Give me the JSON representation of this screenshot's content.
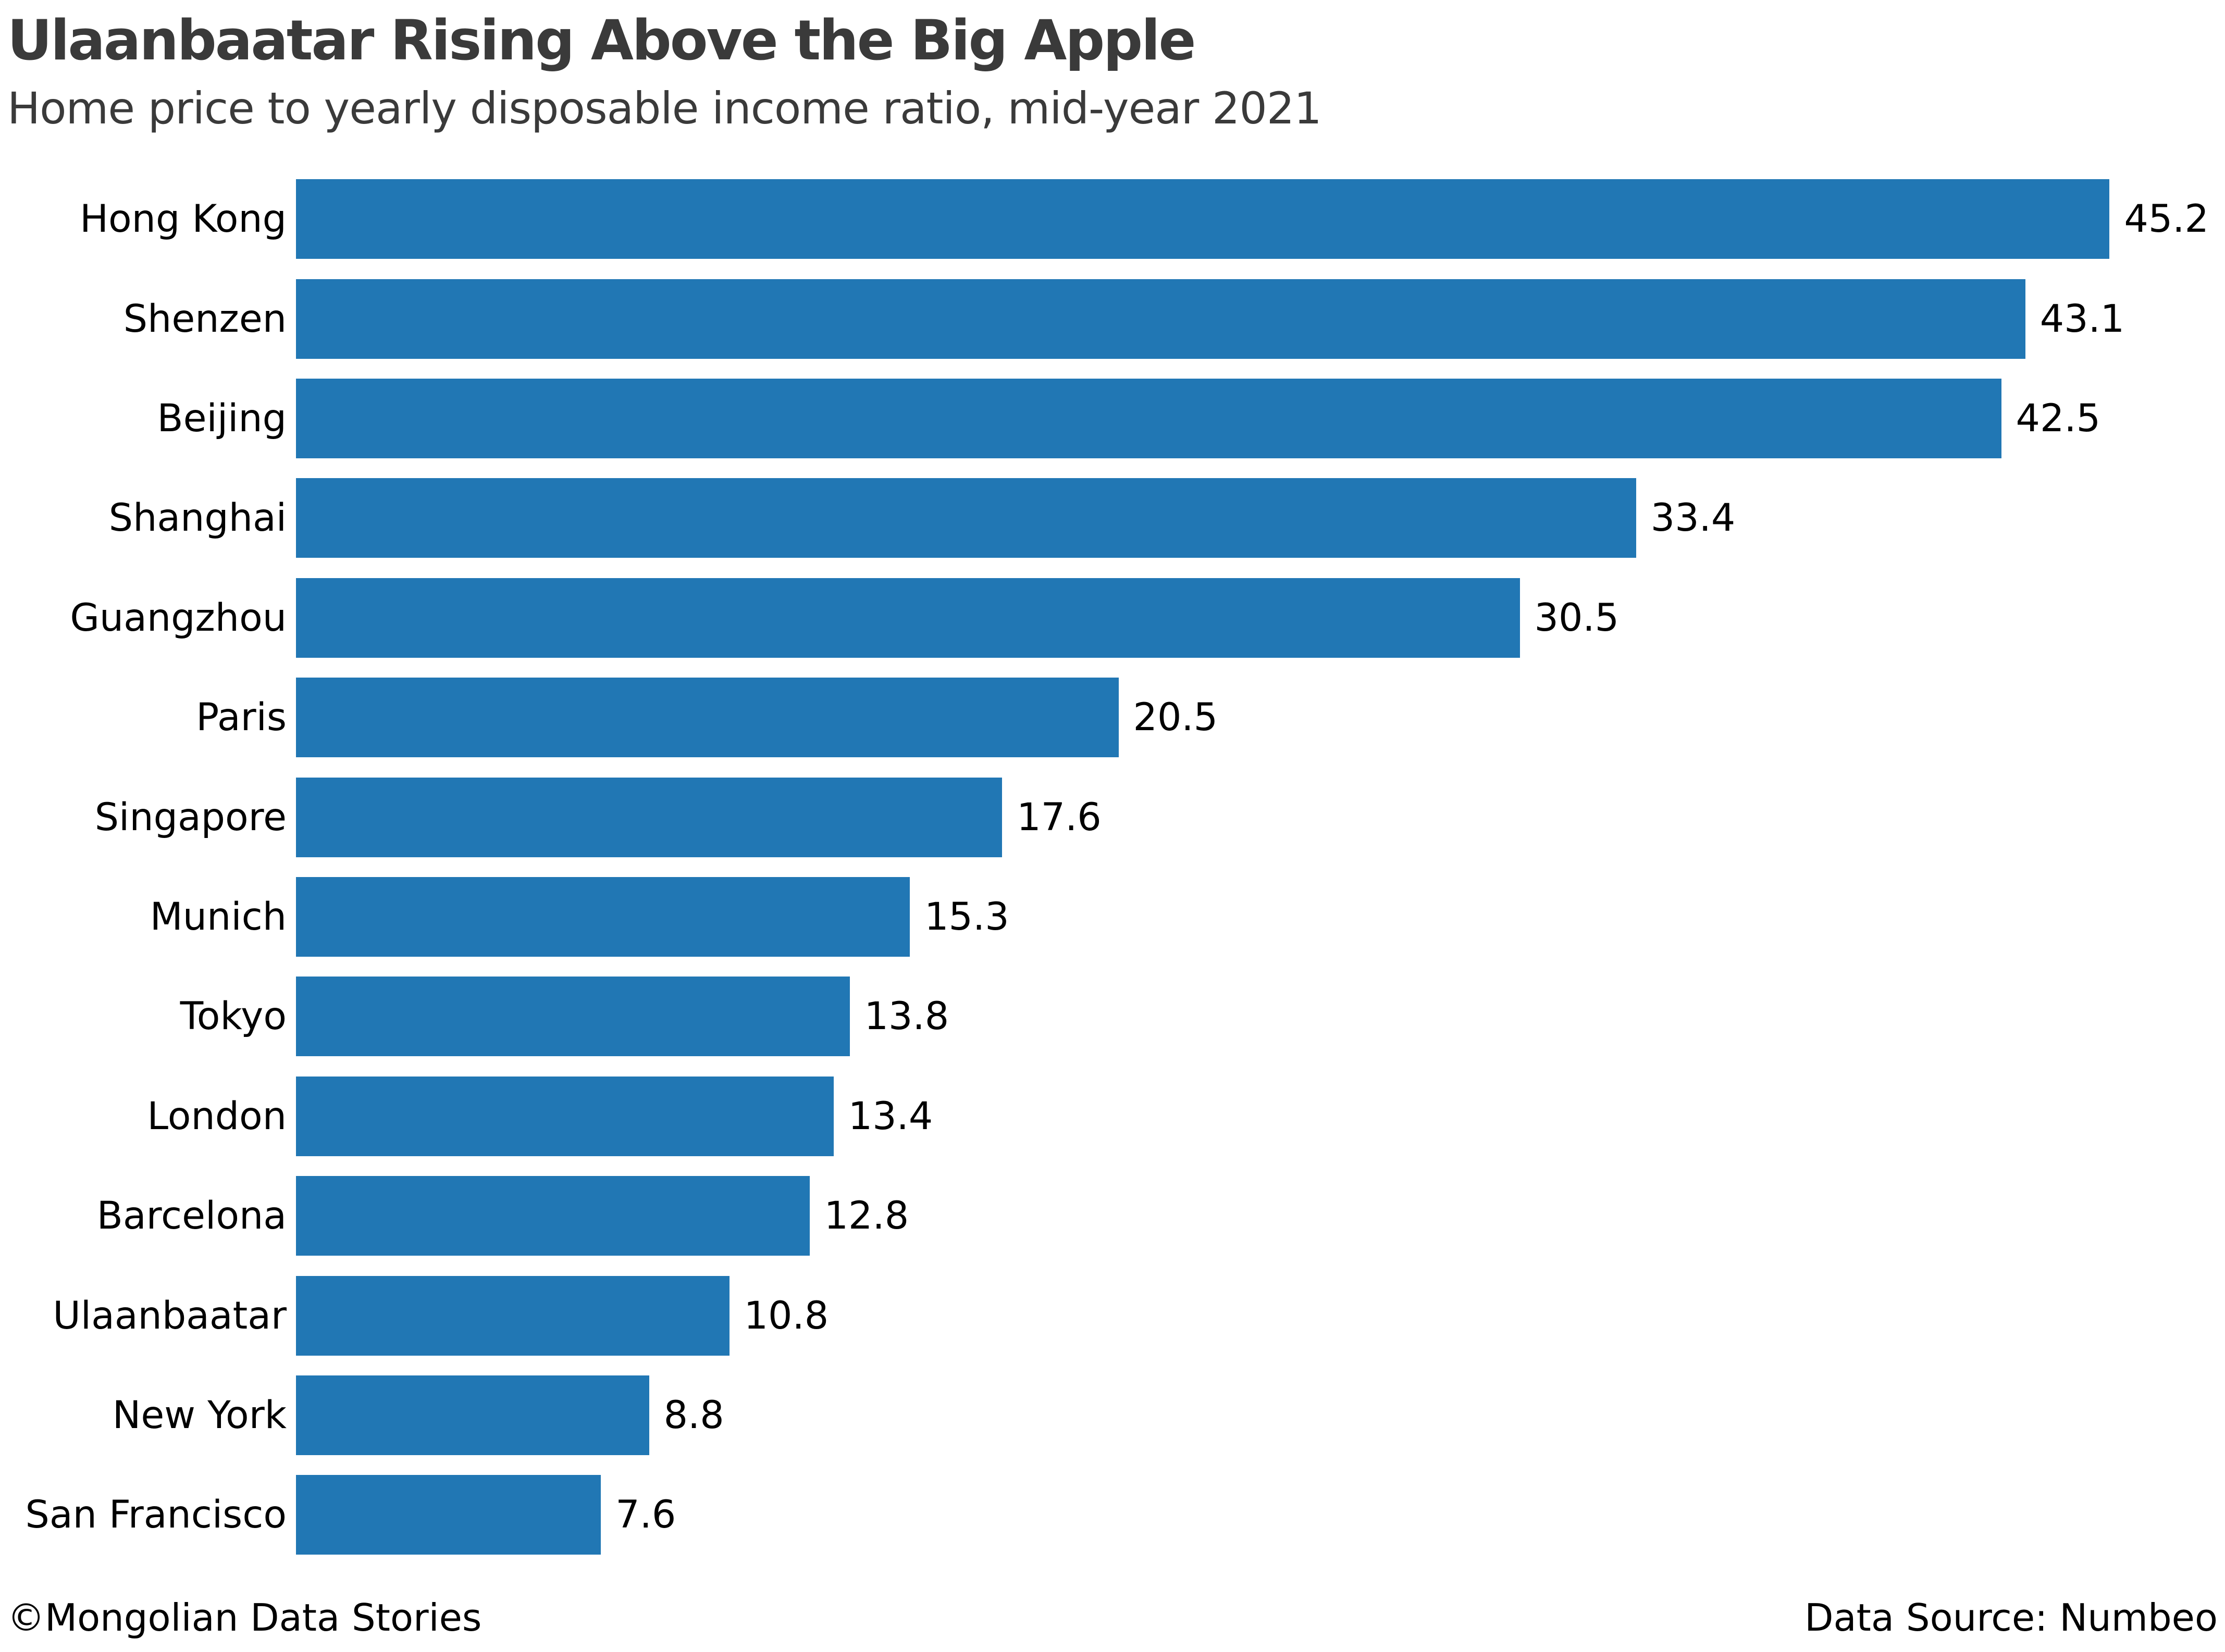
{
  "colors": {
    "bar": "#2177b4",
    "heading_text": "#3a3a3a",
    "label_text": "#000000",
    "background": "#ffffff"
  },
  "footer": {
    "credit": "©Mongolian Data Stories",
    "source": "Data Source: Numbeo"
  },
  "chart_data": {
    "type": "bar",
    "orientation": "horizontal",
    "title": "Ulaanbaatar Rising Above the Big Apple",
    "subtitle": "Home price to yearly disposable income ratio, mid-year 2021",
    "categories": [
      "Hong Kong",
      "Shenzen",
      "Beijing",
      "Shanghai",
      "Guangzhou",
      "Paris",
      "Singapore",
      "Munich",
      "Tokyo",
      "London",
      "Barcelona",
      "Ulaanbaatar",
      "New York",
      "San Francisco"
    ],
    "values": [
      45.2,
      43.1,
      42.5,
      33.4,
      30.5,
      20.5,
      17.6,
      15.3,
      13.8,
      13.4,
      12.8,
      10.8,
      8.8,
      7.6
    ],
    "value_labels": true,
    "xlabel": "",
    "ylabel": "",
    "xlim": [
      0,
      48
    ],
    "grid": false,
    "legend": false,
    "bars_sorted_descending": true
  }
}
